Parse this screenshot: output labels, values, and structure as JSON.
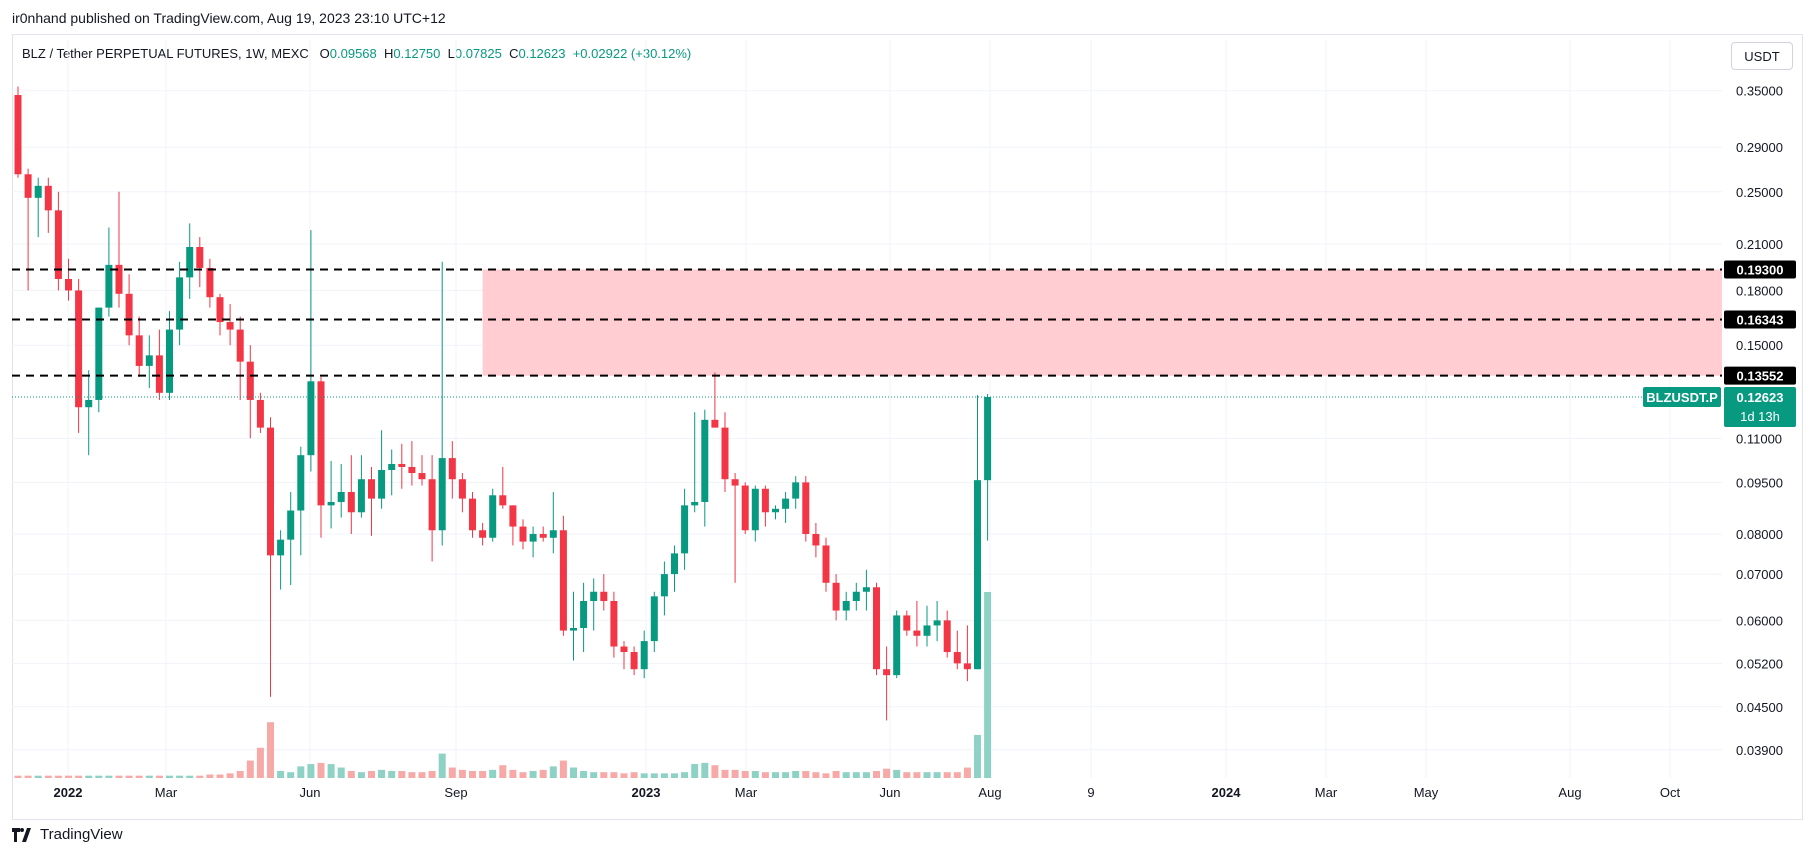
{
  "header": {
    "published": "ir0nhand published on TradingView.com, Aug 19, 2023 23:10 UTC+12"
  },
  "legend": {
    "symbol": "BLZ / Tether PERPETUAL FUTURES, 1W, MEXC",
    "o_label": "O",
    "o_value": "0.09568",
    "h_label": "H",
    "h_value": "0.12750",
    "l_label": "L",
    "l_value": "0.07825",
    "c_label": "C",
    "c_value": "0.12623",
    "change": "+0.02922 (+30.12%)"
  },
  "currency_button": "USDT",
  "footer": {
    "brand": "TradingView"
  },
  "colors": {
    "up": "#089981",
    "down": "#f23645",
    "up_volume": "#8ed1c5",
    "down_volume": "#f7a9a7",
    "zone": "#ffcdd2",
    "level_label_bg": "#000000"
  },
  "chart_data": {
    "type": "candlestick",
    "title": "BLZ / Tether PERPETUAL FUTURES, 1W, MEXC",
    "y_scale": "log",
    "ylim": [
      0.0355,
      0.375
    ],
    "y_ticks": [
      "0.35000",
      "0.29000",
      "0.25000",
      "0.21000",
      "0.18000",
      "0.15000",
      "0.11000",
      "0.09500",
      "0.08000",
      "0.07000",
      "0.06000",
      "0.05200",
      "0.04500",
      "0.03900"
    ],
    "x_ticks": [
      "2022",
      "Mar",
      "Jun",
      "Sep",
      "2023",
      "Mar",
      "Jun",
      "Aug",
      "9",
      "2024",
      "Mar",
      "May",
      "Aug",
      "Oct"
    ],
    "levels": [
      {
        "price": 0.193,
        "label": "0.19300"
      },
      {
        "price": 0.16343,
        "label": "0.16343"
      },
      {
        "price": 0.13552,
        "label": "0.13552"
      }
    ],
    "zone": {
      "low": 0.13552,
      "high": 0.193,
      "from_index": 46
    },
    "last_price": {
      "symbol": "BLZUSDT.P",
      "price": "0.12623",
      "countdown": "1d 13h",
      "value": 0.12623
    },
    "candles": [
      {
        "o": 0.345,
        "h": 0.355,
        "l": 0.262,
        "c": 0.265,
        "v": 0.2
      },
      {
        "o": 0.265,
        "h": 0.27,
        "l": 0.18,
        "c": 0.245,
        "v": 0.2
      },
      {
        "o": 0.245,
        "h": 0.262,
        "l": 0.215,
        "c": 0.255,
        "v": 0.2
      },
      {
        "o": 0.255,
        "h": 0.262,
        "l": 0.218,
        "c": 0.235,
        "v": 0.2
      },
      {
        "o": 0.235,
        "h": 0.25,
        "l": 0.18,
        "c": 0.187,
        "v": 0.2
      },
      {
        "o": 0.187,
        "h": 0.2,
        "l": 0.174,
        "c": 0.18,
        "v": 0.2
      },
      {
        "o": 0.18,
        "h": 0.187,
        "l": 0.112,
        "c": 0.122,
        "v": 0.2
      },
      {
        "o": 0.122,
        "h": 0.138,
        "l": 0.104,
        "c": 0.125,
        "v": 0.2
      },
      {
        "o": 0.125,
        "h": 0.17,
        "l": 0.12,
        "c": 0.17,
        "v": 0.2
      },
      {
        "o": 0.17,
        "h": 0.222,
        "l": 0.165,
        "c": 0.196,
        "v": 0.2
      },
      {
        "o": 0.196,
        "h": 0.25,
        "l": 0.17,
        "c": 0.178,
        "v": 0.2
      },
      {
        "o": 0.178,
        "h": 0.19,
        "l": 0.15,
        "c": 0.155,
        "v": 0.2
      },
      {
        "o": 0.155,
        "h": 0.165,
        "l": 0.135,
        "c": 0.14,
        "v": 0.2
      },
      {
        "o": 0.14,
        "h": 0.155,
        "l": 0.13,
        "c": 0.145,
        "v": 0.2
      },
      {
        "o": 0.145,
        "h": 0.158,
        "l": 0.125,
        "c": 0.128,
        "v": 0.2
      },
      {
        "o": 0.128,
        "h": 0.168,
        "l": 0.125,
        "c": 0.158,
        "v": 0.2
      },
      {
        "o": 0.158,
        "h": 0.198,
        "l": 0.15,
        "c": 0.188,
        "v": 0.2
      },
      {
        "o": 0.188,
        "h": 0.225,
        "l": 0.175,
        "c": 0.208,
        "v": 0.2
      },
      {
        "o": 0.208,
        "h": 0.215,
        "l": 0.182,
        "c": 0.194,
        "v": 0.2
      },
      {
        "o": 0.194,
        "h": 0.2,
        "l": 0.17,
        "c": 0.176,
        "v": 0.3
      },
      {
        "o": 0.176,
        "h": 0.178,
        "l": 0.155,
        "c": 0.162,
        "v": 0.3
      },
      {
        "o": 0.162,
        "h": 0.172,
        "l": 0.15,
        "c": 0.158,
        "v": 0.4
      },
      {
        "o": 0.158,
        "h": 0.165,
        "l": 0.125,
        "c": 0.142,
        "v": 0.6
      },
      {
        "o": 0.142,
        "h": 0.15,
        "l": 0.11,
        "c": 0.125,
        "v": 1.5
      },
      {
        "o": 0.125,
        "h": 0.128,
        "l": 0.112,
        "c": 0.114,
        "v": 2.6
      },
      {
        "o": 0.114,
        "h": 0.118,
        "l": 0.0465,
        "c": 0.0745,
        "v": 4.8
      },
      {
        "o": 0.0745,
        "h": 0.081,
        "l": 0.0665,
        "c": 0.0785,
        "v": 0.6
      },
      {
        "o": 0.0785,
        "h": 0.092,
        "l": 0.0675,
        "c": 0.0865,
        "v": 0.5
      },
      {
        "o": 0.0865,
        "h": 0.107,
        "l": 0.0745,
        "c": 0.104,
        "v": 1.0
      },
      {
        "o": 0.104,
        "h": 0.22,
        "l": 0.0985,
        "c": 0.133,
        "v": 1.2
      },
      {
        "o": 0.133,
        "h": 0.135,
        "l": 0.079,
        "c": 0.088,
        "v": 1.3
      },
      {
        "o": 0.088,
        "h": 0.102,
        "l": 0.0815,
        "c": 0.089,
        "v": 1.2
      },
      {
        "o": 0.089,
        "h": 0.101,
        "l": 0.0845,
        "c": 0.092,
        "v": 0.9
      },
      {
        "o": 0.092,
        "h": 0.104,
        "l": 0.08,
        "c": 0.086,
        "v": 0.6
      },
      {
        "o": 0.086,
        "h": 0.104,
        "l": 0.0845,
        "c": 0.096,
        "v": 0.5
      },
      {
        "o": 0.096,
        "h": 0.1,
        "l": 0.0795,
        "c": 0.09,
        "v": 0.6
      },
      {
        "o": 0.09,
        "h": 0.113,
        "l": 0.087,
        "c": 0.099,
        "v": 0.7
      },
      {
        "o": 0.099,
        "h": 0.106,
        "l": 0.091,
        "c": 0.101,
        "v": 0.6
      },
      {
        "o": 0.101,
        "h": 0.108,
        "l": 0.093,
        "c": 0.1,
        "v": 0.6
      },
      {
        "o": 0.1,
        "h": 0.109,
        "l": 0.094,
        "c": 0.098,
        "v": 0.5
      },
      {
        "o": 0.098,
        "h": 0.104,
        "l": 0.094,
        "c": 0.096,
        "v": 0.5
      },
      {
        "o": 0.096,
        "h": 0.104,
        "l": 0.073,
        "c": 0.081,
        "v": 0.6
      },
      {
        "o": 0.081,
        "h": 0.198,
        "l": 0.077,
        "c": 0.103,
        "v": 2.1
      },
      {
        "o": 0.103,
        "h": 0.109,
        "l": 0.09,
        "c": 0.096,
        "v": 0.9
      },
      {
        "o": 0.096,
        "h": 0.098,
        "l": 0.086,
        "c": 0.09,
        "v": 0.7
      },
      {
        "o": 0.09,
        "h": 0.092,
        "l": 0.079,
        "c": 0.081,
        "v": 0.6
      },
      {
        "o": 0.081,
        "h": 0.083,
        "l": 0.077,
        "c": 0.079,
        "v": 0.6
      },
      {
        "o": 0.079,
        "h": 0.093,
        "l": 0.078,
        "c": 0.091,
        "v": 0.7
      },
      {
        "o": 0.091,
        "h": 0.1,
        "l": 0.087,
        "c": 0.088,
        "v": 1.1
      },
      {
        "o": 0.088,
        "h": 0.088,
        "l": 0.077,
        "c": 0.082,
        "v": 0.7
      },
      {
        "o": 0.082,
        "h": 0.084,
        "l": 0.076,
        "c": 0.078,
        "v": 0.5
      },
      {
        "o": 0.078,
        "h": 0.082,
        "l": 0.074,
        "c": 0.08,
        "v": 0.6
      },
      {
        "o": 0.08,
        "h": 0.082,
        "l": 0.078,
        "c": 0.079,
        "v": 0.7
      },
      {
        "o": 0.079,
        "h": 0.092,
        "l": 0.075,
        "c": 0.081,
        "v": 1.0
      },
      {
        "o": 0.081,
        "h": 0.085,
        "l": 0.057,
        "c": 0.058,
        "v": 1.5
      },
      {
        "o": 0.058,
        "h": 0.066,
        "l": 0.0525,
        "c": 0.0585,
        "v": 0.9
      },
      {
        "o": 0.0585,
        "h": 0.068,
        "l": 0.054,
        "c": 0.064,
        "v": 0.6
      },
      {
        "o": 0.064,
        "h": 0.069,
        "l": 0.058,
        "c": 0.066,
        "v": 0.5
      },
      {
        "o": 0.066,
        "h": 0.07,
        "l": 0.062,
        "c": 0.064,
        "v": 0.5
      },
      {
        "o": 0.064,
        "h": 0.066,
        "l": 0.053,
        "c": 0.055,
        "v": 0.5
      },
      {
        "o": 0.055,
        "h": 0.056,
        "l": 0.051,
        "c": 0.054,
        "v": 0.4
      },
      {
        "o": 0.054,
        "h": 0.055,
        "l": 0.05,
        "c": 0.051,
        "v": 0.5
      },
      {
        "o": 0.051,
        "h": 0.058,
        "l": 0.0495,
        "c": 0.056,
        "v": 0.4
      },
      {
        "o": 0.056,
        "h": 0.066,
        "l": 0.054,
        "c": 0.065,
        "v": 0.4
      },
      {
        "o": 0.065,
        "h": 0.073,
        "l": 0.061,
        "c": 0.07,
        "v": 0.4
      },
      {
        "o": 0.07,
        "h": 0.077,
        "l": 0.066,
        "c": 0.075,
        "v": 0.4
      },
      {
        "o": 0.075,
        "h": 0.093,
        "l": 0.071,
        "c": 0.088,
        "v": 0.5
      },
      {
        "o": 0.088,
        "h": 0.12,
        "l": 0.086,
        "c": 0.089,
        "v": 1.2
      },
      {
        "o": 0.089,
        "h": 0.121,
        "l": 0.082,
        "c": 0.117,
        "v": 1.3
      },
      {
        "o": 0.117,
        "h": 0.137,
        "l": 0.114,
        "c": 0.114,
        "v": 1.1
      },
      {
        "o": 0.114,
        "h": 0.12,
        "l": 0.092,
        "c": 0.096,
        "v": 0.7
      },
      {
        "o": 0.096,
        "h": 0.098,
        "l": 0.068,
        "c": 0.094,
        "v": 0.7
      },
      {
        "o": 0.094,
        "h": 0.095,
        "l": 0.08,
        "c": 0.081,
        "v": 0.6
      },
      {
        "o": 0.081,
        "h": 0.094,
        "l": 0.078,
        "c": 0.093,
        "v": 0.6
      },
      {
        "o": 0.093,
        "h": 0.094,
        "l": 0.082,
        "c": 0.086,
        "v": 0.5
      },
      {
        "o": 0.086,
        "h": 0.088,
        "l": 0.084,
        "c": 0.087,
        "v": 0.5
      },
      {
        "o": 0.087,
        "h": 0.092,
        "l": 0.083,
        "c": 0.09,
        "v": 0.5
      },
      {
        "o": 0.09,
        "h": 0.097,
        "l": 0.087,
        "c": 0.095,
        "v": 0.6
      },
      {
        "o": 0.095,
        "h": 0.097,
        "l": 0.078,
        "c": 0.08,
        "v": 0.6
      },
      {
        "o": 0.08,
        "h": 0.083,
        "l": 0.074,
        "c": 0.077,
        "v": 0.5
      },
      {
        "o": 0.077,
        "h": 0.079,
        "l": 0.066,
        "c": 0.068,
        "v": 0.4
      },
      {
        "o": 0.068,
        "h": 0.07,
        "l": 0.06,
        "c": 0.062,
        "v": 0.6
      },
      {
        "o": 0.062,
        "h": 0.066,
        "l": 0.06,
        "c": 0.064,
        "v": 0.5
      },
      {
        "o": 0.064,
        "h": 0.068,
        "l": 0.062,
        "c": 0.066,
        "v": 0.5
      },
      {
        "o": 0.066,
        "h": 0.071,
        "l": 0.062,
        "c": 0.067,
        "v": 0.5
      },
      {
        "o": 0.067,
        "h": 0.068,
        "l": 0.05,
        "c": 0.051,
        "v": 0.6
      },
      {
        "o": 0.051,
        "h": 0.055,
        "l": 0.043,
        "c": 0.05,
        "v": 0.8
      },
      {
        "o": 0.05,
        "h": 0.062,
        "l": 0.0495,
        "c": 0.061,
        "v": 0.7
      },
      {
        "o": 0.061,
        "h": 0.062,
        "l": 0.057,
        "c": 0.058,
        "v": 0.5
      },
      {
        "o": 0.058,
        "h": 0.064,
        "l": 0.055,
        "c": 0.057,
        "v": 0.5
      },
      {
        "o": 0.057,
        "h": 0.063,
        "l": 0.055,
        "c": 0.059,
        "v": 0.5
      },
      {
        "o": 0.059,
        "h": 0.064,
        "l": 0.056,
        "c": 0.06,
        "v": 0.5
      },
      {
        "o": 0.06,
        "h": 0.062,
        "l": 0.053,
        "c": 0.054,
        "v": 0.5
      },
      {
        "o": 0.054,
        "h": 0.058,
        "l": 0.051,
        "c": 0.052,
        "v": 0.5
      },
      {
        "o": 0.052,
        "h": 0.059,
        "l": 0.049,
        "c": 0.051,
        "v": 0.9
      },
      {
        "o": 0.051,
        "h": 0.127,
        "l": 0.051,
        "c": 0.0957,
        "v": 3.7
      },
      {
        "o": 0.0957,
        "h": 0.1275,
        "l": 0.07825,
        "c": 0.12623,
        "v": 16.0
      }
    ]
  }
}
